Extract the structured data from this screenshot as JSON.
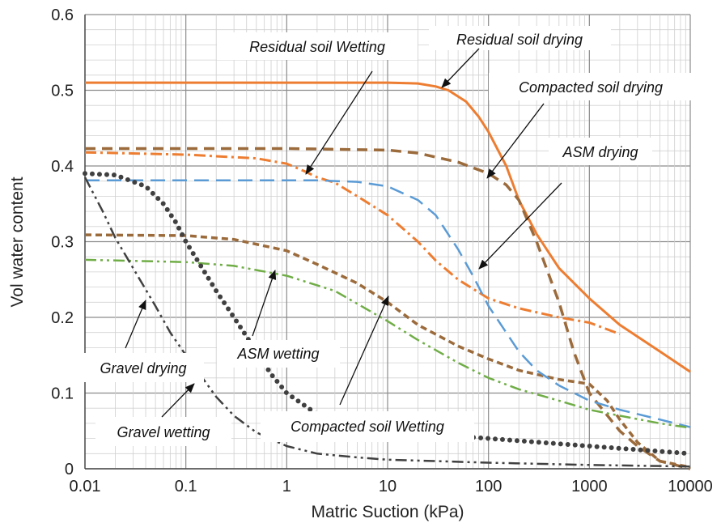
{
  "chart_data": {
    "type": "line",
    "title": "",
    "xlabel": "Matric Suction (kPa)",
    "ylabel": "Vol water content",
    "x_scale": "log",
    "xlim": [
      0.01,
      10000
    ],
    "ylim": [
      0,
      0.6
    ],
    "grid": true,
    "x_ticks": [
      0.01,
      0.1,
      1,
      10,
      100,
      1000,
      10000
    ],
    "x_tick_labels": [
      "0.01",
      "0.1",
      "1",
      "10",
      "100",
      "1000",
      "10000"
    ],
    "y_ticks": [
      0,
      0.1,
      0.2,
      0.3,
      0.4,
      0.5,
      0.6
    ],
    "y_tick_labels": [
      "0",
      "0.1",
      "0.2",
      "0.3",
      "0.4",
      "0.5",
      "0.6"
    ],
    "series": [
      {
        "name": "Residual soil drying",
        "color": "#ED7D31",
        "dash": "solid",
        "width": 3,
        "x": [
          0.01,
          1,
          10,
          20,
          30,
          40,
          60,
          80,
          100,
          150,
          200,
          300,
          500,
          1000,
          2000,
          5000,
          10000
        ],
        "y": [
          0.51,
          0.51,
          0.51,
          0.509,
          0.505,
          0.5,
          0.485,
          0.465,
          0.445,
          0.4,
          0.355,
          0.31,
          0.265,
          0.225,
          0.19,
          0.155,
          0.128
        ]
      },
      {
        "name": "Residual soil Wetting",
        "color": "#ED7D31",
        "dash": "dashdot",
        "width": 3,
        "x": [
          0.01,
          0.1,
          0.5,
          1,
          1.5,
          2,
          3,
          5,
          10,
          20,
          30,
          50,
          100,
          200,
          500,
          1000,
          2000
        ],
        "y": [
          0.418,
          0.415,
          0.41,
          0.403,
          0.393,
          0.385,
          0.378,
          0.36,
          0.335,
          0.3,
          0.275,
          0.25,
          0.225,
          0.212,
          0.2,
          0.193,
          0.178
        ]
      },
      {
        "name": "Compacted soil drying",
        "color": "#9C6B3C",
        "dash": "dash",
        "width": 3.5,
        "x": [
          0.01,
          0.1,
          1,
          10,
          20,
          50,
          100,
          150,
          200,
          300,
          500,
          700,
          1000,
          2000,
          3000,
          5000,
          10000
        ],
        "y": [
          0.423,
          0.423,
          0.423,
          0.421,
          0.417,
          0.405,
          0.39,
          0.375,
          0.355,
          0.3,
          0.22,
          0.155,
          0.1,
          0.05,
          0.03,
          0.01,
          0.0
        ]
      },
      {
        "name": "Compacted soil Wetting",
        "color": "#9C6B3C",
        "dash": "dashshort",
        "width": 3.5,
        "x": [
          0.01,
          0.1,
          0.3,
          1,
          2,
          5,
          10,
          20,
          50,
          100,
          200,
          500,
          1000,
          1500,
          2000,
          3000,
          5000,
          10000
        ],
        "y": [
          0.309,
          0.308,
          0.303,
          0.288,
          0.27,
          0.245,
          0.22,
          0.19,
          0.162,
          0.145,
          0.13,
          0.118,
          0.112,
          0.09,
          0.065,
          0.035,
          0.01,
          0.002
        ]
      },
      {
        "name": "ASM drying",
        "color": "#5B9BD5",
        "dash": "longdash",
        "width": 2.5,
        "x": [
          0.01,
          0.1,
          1,
          2,
          5,
          10,
          20,
          30,
          50,
          70,
          100,
          200,
          300,
          500,
          1000,
          2000,
          5000,
          10000
        ],
        "y": [
          0.381,
          0.381,
          0.381,
          0.381,
          0.379,
          0.373,
          0.355,
          0.335,
          0.29,
          0.255,
          0.215,
          0.155,
          0.13,
          0.11,
          0.09,
          0.078,
          0.065,
          0.055
        ]
      },
      {
        "name": "ASM wetting",
        "color": "#70AD47",
        "dash": "dashdotdot",
        "width": 2.5,
        "x": [
          0.01,
          0.1,
          0.3,
          1,
          3,
          10,
          20,
          50,
          100,
          200,
          500,
          1000,
          2000,
          5000,
          10000
        ],
        "y": [
          0.276,
          0.273,
          0.268,
          0.255,
          0.235,
          0.195,
          0.17,
          0.14,
          0.12,
          0.105,
          0.09,
          0.078,
          0.07,
          0.06,
          0.054
        ]
      },
      {
        "name": "Gravel drying",
        "color": "#404040",
        "dash": "dots",
        "width": 6,
        "x": [
          0.01,
          0.02,
          0.04,
          0.06,
          0.08,
          0.1,
          0.15,
          0.2,
          0.3,
          0.5,
          0.7,
          1,
          2,
          3,
          5,
          10,
          30,
          100,
          1000,
          10000
        ],
        "y": [
          0.39,
          0.388,
          0.373,
          0.35,
          0.325,
          0.3,
          0.262,
          0.235,
          0.2,
          0.155,
          0.125,
          0.1,
          0.072,
          0.062,
          0.055,
          0.05,
          0.045,
          0.04,
          0.03,
          0.02
        ]
      },
      {
        "name": "Gravel wetting",
        "color": "#404040",
        "dash": "dashdotdot",
        "width": 2.5,
        "x": [
          0.01,
          0.015,
          0.02,
          0.03,
          0.05,
          0.07,
          0.1,
          0.15,
          0.2,
          0.3,
          0.5,
          1,
          2,
          5,
          10,
          100,
          1000,
          10000
        ],
        "y": [
          0.385,
          0.34,
          0.305,
          0.265,
          0.215,
          0.18,
          0.15,
          0.118,
          0.095,
          0.07,
          0.048,
          0.03,
          0.02,
          0.015,
          0.012,
          0.008,
          0.005,
          0.003
        ]
      }
    ],
    "annotations": [
      {
        "text": "Residual soil Wetting"
      },
      {
        "text": "Residual soil drying"
      },
      {
        "text": "Compacted soil drying"
      },
      {
        "text": "ASM drying"
      },
      {
        "text": "Gravel drying"
      },
      {
        "text": "ASM wetting"
      },
      {
        "text": "Gravel wetting"
      },
      {
        "text": "Compacted soil Wetting"
      }
    ]
  }
}
